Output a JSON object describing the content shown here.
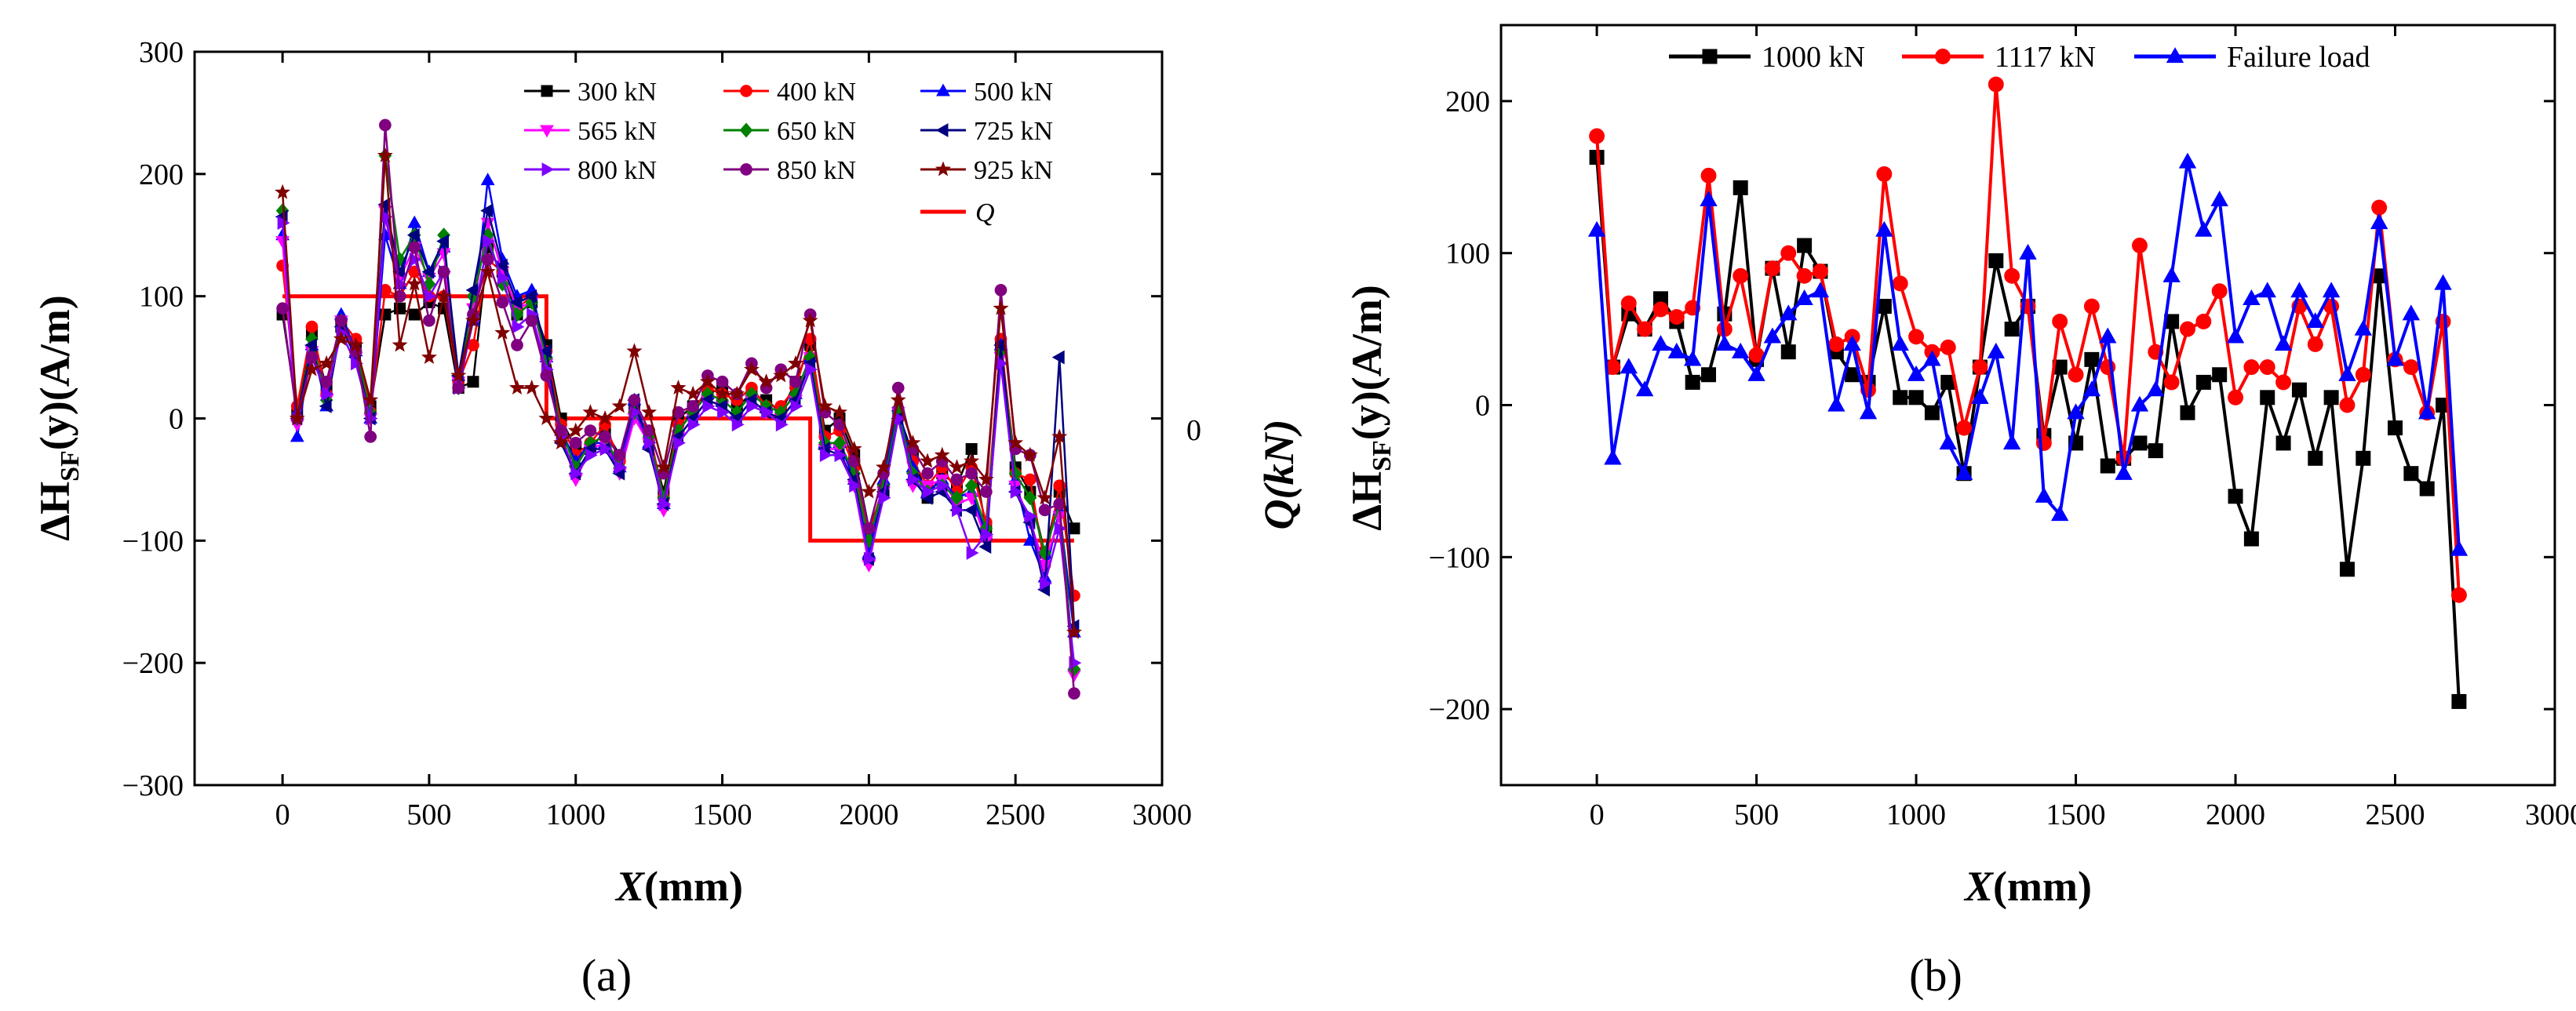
{
  "chart_data": [
    {
      "type": "line",
      "panel_label": "(a)",
      "xlabel_main": "X",
      "xlabel_unit": "(mm)",
      "ylabel_prefix": "ΔH",
      "ylabel_sub": "SF",
      "ylabel_suffix": "(y)(A/m)",
      "xlim": [
        -300,
        3000
      ],
      "ylim": [
        -300,
        300
      ],
      "xticks": [
        0,
        500,
        1000,
        1500,
        2000,
        2500,
        3000
      ],
      "yticks": [
        -300,
        -200,
        -100,
        0,
        100,
        200,
        300
      ],
      "xtick_labels": [
        "0",
        "500",
        "1000",
        "1500",
        "2000",
        "2500",
        "3000"
      ],
      "ytick_labels": [
        "−300",
        "−200",
        "−100",
        "0",
        "100",
        "200",
        "300"
      ],
      "right_axis_tick": "0",
      "x": [
        0,
        50,
        100,
        150,
        200,
        250,
        300,
        350,
        400,
        450,
        500,
        550,
        600,
        650,
        700,
        750,
        800,
        850,
        900,
        950,
        1000,
        1050,
        1100,
        1150,
        1200,
        1250,
        1300,
        1350,
        1400,
        1450,
        1500,
        1550,
        1600,
        1650,
        1700,
        1750,
        1800,
        1850,
        1900,
        1950,
        2000,
        2050,
        2100,
        2150,
        2200,
        2250,
        2300,
        2350,
        2400,
        2450,
        2500,
        2550,
        2600,
        2650,
        2700
      ],
      "series": [
        {
          "name": "300 kN",
          "color": "#000000",
          "marker": "square",
          "values": [
            85,
            5,
            70,
            25,
            75,
            60,
            10,
            85,
            90,
            85,
            95,
            90,
            25,
            30,
            140,
            120,
            85,
            95,
            60,
            0,
            -25,
            -25,
            -10,
            -30,
            10,
            -15,
            -60,
            0,
            10,
            20,
            25,
            10,
            20,
            15,
            5,
            30,
            60,
            -10,
            0,
            -30,
            -90,
            -60,
            5,
            -30,
            -65,
            -45,
            -55,
            -25,
            -90,
            60,
            -40,
            -60,
            -110,
            -60,
            -90
          ]
        },
        {
          "name": "400 kN",
          "color": "#ff0000",
          "marker": "circle",
          "values": [
            125,
            10,
            75,
            20,
            80,
            65,
            5,
            105,
            100,
            120,
            100,
            100,
            30,
            60,
            130,
            120,
            90,
            100,
            55,
            -5,
            -30,
            -20,
            -5,
            -35,
            5,
            -10,
            -65,
            -5,
            5,
            25,
            20,
            15,
            25,
            10,
            10,
            25,
            65,
            -15,
            -10,
            -40,
            -95,
            -55,
            0,
            -35,
            -55,
            -40,
            -60,
            -40,
            -85,
            65,
            -45,
            -50,
            -120,
            -55,
            -145
          ]
        },
        {
          "name": "500 kN",
          "color": "#0000ff",
          "marker": "triangle-up",
          "values": [
            150,
            -15,
            60,
            10,
            85,
            55,
            0,
            150,
            110,
            160,
            120,
            140,
            35,
            80,
            195,
            130,
            100,
            105,
            50,
            -10,
            -35,
            -20,
            -20,
            -40,
            15,
            -20,
            -70,
            -10,
            5,
            20,
            15,
            5,
            20,
            10,
            5,
            20,
            50,
            -20,
            -20,
            -50,
            -110,
            -50,
            10,
            -40,
            -60,
            -50,
            -65,
            -60,
            -95,
            60,
            -50,
            -100,
            -130,
            -75,
            -175
          ]
        },
        {
          "name": "565 kN",
          "color": "#ff00ff",
          "marker": "triangle-down",
          "values": [
            145,
            -5,
            55,
            15,
            80,
            50,
            0,
            170,
            115,
            140,
            115,
            135,
            30,
            90,
            160,
            120,
            90,
            95,
            45,
            -15,
            -50,
            -25,
            -20,
            -45,
            0,
            -20,
            -75,
            -15,
            0,
            15,
            10,
            0,
            15,
            5,
            0,
            15,
            50,
            -25,
            -25,
            -55,
            -120,
            -60,
            5,
            -55,
            -55,
            -50,
            -70,
            -65,
            -100,
            50,
            -55,
            -85,
            -120,
            -80,
            -210
          ]
        },
        {
          "name": "650 kN",
          "color": "#008000",
          "marker": "diamond",
          "values": [
            170,
            0,
            65,
            15,
            80,
            55,
            5,
            215,
            130,
            150,
            110,
            150,
            25,
            100,
            150,
            110,
            85,
            95,
            50,
            -10,
            -40,
            -20,
            -15,
            -40,
            5,
            -15,
            -65,
            -10,
            5,
            20,
            15,
            5,
            20,
            10,
            5,
            20,
            50,
            -20,
            -20,
            -45,
            -100,
            -55,
            5,
            -45,
            -60,
            -55,
            -65,
            -55,
            -90,
            55,
            -45,
            -65,
            -110,
            -70,
            -205
          ]
        },
        {
          "name": "725 kN",
          "color": "#000080",
          "marker": "triangle-left",
          "values": [
            165,
            0,
            60,
            10,
            75,
            50,
            0,
            175,
            120,
            150,
            120,
            145,
            35,
            105,
            170,
            125,
            95,
            100,
            55,
            -20,
            -45,
            -25,
            -25,
            -45,
            15,
            -25,
            -70,
            -15,
            0,
            15,
            10,
            0,
            15,
            5,
            0,
            15,
            45,
            -25,
            -30,
            -50,
            -115,
            -60,
            0,
            -50,
            -65,
            -60,
            -75,
            -75,
            -105,
            60,
            -60,
            -85,
            -140,
            50,
            -170
          ]
        },
        {
          "name": "800 kN",
          "color": "#8000ff",
          "marker": "triangle-right",
          "values": [
            160,
            0,
            50,
            20,
            70,
            45,
            0,
            165,
            110,
            130,
            100,
            120,
            25,
            80,
            145,
            115,
            75,
            85,
            40,
            -15,
            -45,
            -30,
            -25,
            -40,
            5,
            -20,
            -70,
            -20,
            -5,
            10,
            5,
            -5,
            10,
            5,
            -5,
            10,
            40,
            -30,
            -30,
            -55,
            -115,
            -65,
            0,
            -50,
            -60,
            -55,
            -75,
            -110,
            -95,
            45,
            -60,
            -80,
            -135,
            -90,
            -200
          ]
        },
        {
          "name": "850 kN",
          "color": "#800080",
          "marker": "circle",
          "values": [
            90,
            0,
            50,
            30,
            80,
            55,
            -15,
            240,
            100,
            140,
            80,
            120,
            25,
            85,
            130,
            95,
            60,
            80,
            35,
            -10,
            -20,
            -10,
            -15,
            -30,
            15,
            -10,
            -45,
            5,
            10,
            35,
            30,
            20,
            45,
            25,
            40,
            30,
            85,
            5,
            -5,
            -35,
            -90,
            -45,
            25,
            -25,
            -45,
            -35,
            -50,
            -45,
            -60,
            105,
            -25,
            -30,
            -75,
            -70,
            -225
          ]
        },
        {
          "name": "925 kN",
          "color": "#800000",
          "marker": "star",
          "values": [
            185,
            0,
            40,
            45,
            65,
            60,
            15,
            215,
            60,
            110,
            50,
            100,
            35,
            80,
            120,
            70,
            25,
            25,
            0,
            -20,
            -10,
            5,
            0,
            10,
            55,
            5,
            -40,
            25,
            20,
            30,
            20,
            20,
            40,
            30,
            35,
            45,
            80,
            10,
            5,
            -25,
            -60,
            -40,
            15,
            -20,
            -35,
            -30,
            -40,
            -35,
            -50,
            90,
            -20,
            -30,
            -65,
            -15,
            -175
          ]
        }
      ],
      "q_series": {
        "name": "Q",
        "color": "#ff0000",
        "x": [
          0,
          900,
          900,
          1800,
          1800,
          2700
        ],
        "values": [
          100,
          100,
          0,
          0,
          -100,
          -100
        ]
      }
    },
    {
      "type": "line",
      "panel_label": "(b)",
      "xlabel_main": "X",
      "xlabel_unit": "(mm)",
      "ylabel_prefix": "ΔH",
      "ylabel_sub": "SF",
      "ylabel_suffix": "(y)(A/m)",
      "left_axis_label": "Q(kN)",
      "xlim": [
        -300,
        3000
      ],
      "ylim": [
        -250,
        250
      ],
      "xticks": [
        0,
        500,
        1000,
        1500,
        2000,
        2500,
        3000
      ],
      "yticks": [
        -200,
        -100,
        0,
        100,
        200
      ],
      "xtick_labels": [
        "0",
        "500",
        "1000",
        "1500",
        "2000",
        "2500",
        "3000"
      ],
      "ytick_labels": [
        "−200",
        "−100",
        "0",
        "100",
        "200"
      ],
      "x": [
        0,
        50,
        100,
        150,
        200,
        250,
        300,
        350,
        400,
        450,
        500,
        550,
        600,
        650,
        700,
        750,
        800,
        850,
        900,
        950,
        1000,
        1050,
        1100,
        1150,
        1200,
        1250,
        1300,
        1350,
        1400,
        1450,
        1500,
        1550,
        1600,
        1650,
        1700,
        1750,
        1800,
        1850,
        1900,
        1950,
        2000,
        2050,
        2100,
        2150,
        2200,
        2250,
        2300,
        2350,
        2400,
        2450,
        2500,
        2550,
        2600,
        2650,
        2700
      ],
      "series": [
        {
          "name": "1000 kN",
          "color": "#000000",
          "marker": "square",
          "values": [
            163,
            25,
            60,
            50,
            70,
            55,
            15,
            20,
            60,
            143,
            30,
            90,
            35,
            105,
            88,
            35,
            20,
            15,
            65,
            5,
            5,
            -5,
            15,
            -45,
            25,
            95,
            50,
            65,
            -20,
            25,
            -25,
            30,
            -40,
            -35,
            -25,
            -30,
            55,
            -5,
            15,
            20,
            -60,
            -88,
            5,
            -25,
            10,
            -35,
            5,
            -108,
            -35,
            85,
            -15,
            -45,
            -55,
            0,
            -195
          ]
        },
        {
          "name": "1117 kN",
          "color": "#ff0000",
          "marker": "circle",
          "values": [
            177,
            25,
            67,
            50,
            63,
            58,
            64,
            151,
            50,
            85,
            33,
            90,
            100,
            85,
            88,
            40,
            45,
            10,
            152,
            80,
            45,
            35,
            38,
            -15,
            25,
            211,
            85,
            65,
            -25,
            55,
            20,
            65,
            25,
            -35,
            105,
            35,
            15,
            50,
            55,
            75,
            5,
            25,
            25,
            15,
            65,
            40,
            65,
            0,
            20,
            130,
            30,
            25,
            -5,
            55,
            -125
          ]
        },
        {
          "name": "Failure load",
          "color": "#0000ff",
          "marker": "triangle-up",
          "values": [
            115,
            -35,
            25,
            10,
            40,
            35,
            30,
            135,
            40,
            35,
            20,
            45,
            60,
            70,
            75,
            0,
            40,
            -5,
            115,
            40,
            20,
            30,
            -25,
            -45,
            5,
            35,
            -25,
            100,
            -60,
            -72,
            -5,
            10,
            45,
            -45,
            0,
            10,
            85,
            160,
            115,
            135,
            45,
            70,
            75,
            40,
            75,
            55,
            75,
            20,
            50,
            120,
            30,
            60,
            -5,
            80,
            -95
          ]
        }
      ]
    }
  ]
}
